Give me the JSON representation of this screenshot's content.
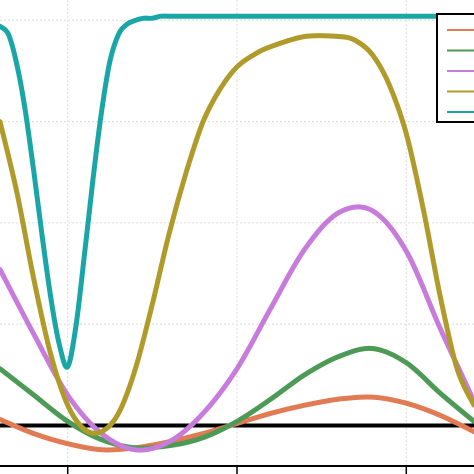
{
  "chart_data": {
    "type": "line",
    "title": "",
    "xlabel": "",
    "ylabel": "",
    "xlim": [
      -0.4,
      2.4
    ],
    "ylim": [
      -0.2,
      2.1
    ],
    "grid": true,
    "legend_position": "top-right",
    "x_ticks": [
      0,
      1,
      2
    ],
    "x_tick_labels": [
      "",
      "",
      ""
    ],
    "baseline": 0,
    "series": [
      {
        "color": "#e07b54",
        "x": [
          -0.4,
          -0.2,
          0.0,
          0.2,
          0.4,
          0.6,
          0.8,
          1.0,
          1.2,
          1.4,
          1.6,
          1.8,
          2.0,
          2.2,
          2.4
        ],
        "y": [
          0.03,
          -0.04,
          -0.09,
          -0.12,
          -0.11,
          -0.08,
          -0.04,
          0.01,
          0.06,
          0.1,
          0.13,
          0.14,
          0.11,
          0.05,
          -0.03
        ]
      },
      {
        "color": "#4c9a55",
        "x": [
          -0.4,
          -0.2,
          0.0,
          0.2,
          0.4,
          0.6,
          0.8,
          1.0,
          1.2,
          1.4,
          1.6,
          1.8,
          2.0,
          2.2,
          2.4
        ],
        "y": [
          0.28,
          0.15,
          0.02,
          -0.07,
          -0.11,
          -0.1,
          -0.06,
          0.02,
          0.13,
          0.25,
          0.34,
          0.38,
          0.31,
          0.16,
          0.02
        ]
      },
      {
        "color": "#c77cdb",
        "x": [
          -0.4,
          -0.2,
          0.0,
          0.2,
          0.4,
          0.6,
          0.8,
          1.0,
          1.2,
          1.4,
          1.6,
          1.8,
          2.0,
          2.2,
          2.4
        ],
        "y": [
          0.77,
          0.45,
          0.15,
          -0.04,
          -0.12,
          -0.08,
          0.06,
          0.28,
          0.58,
          0.87,
          1.05,
          1.06,
          0.86,
          0.48,
          0.12
        ]
      },
      {
        "color": "#b09a2a",
        "x": [
          -0.4,
          -0.3,
          -0.2,
          -0.1,
          0.0,
          0.1,
          0.2,
          0.3,
          0.4,
          0.5,
          0.6,
          0.7,
          0.8,
          0.9,
          1.0,
          1.1,
          1.2,
          1.4,
          1.6,
          1.7,
          1.8,
          1.9,
          2.0,
          2.1,
          2.2,
          2.3,
          2.4
        ],
        "y": [
          1.5,
          1.15,
          0.72,
          0.35,
          0.1,
          -0.02,
          -0.03,
          0.06,
          0.28,
          0.6,
          0.95,
          1.25,
          1.5,
          1.66,
          1.77,
          1.83,
          1.87,
          1.92,
          1.92,
          1.9,
          1.83,
          1.68,
          1.44,
          1.07,
          0.64,
          0.28,
          0.1
        ]
      },
      {
        "color": "#1aa6a6",
        "x": [
          -0.4,
          -0.35,
          -0.3,
          -0.25,
          -0.2,
          -0.15,
          -0.1,
          -0.05,
          0.0,
          0.05,
          0.1,
          0.15,
          0.2,
          0.25,
          0.3,
          0.35,
          0.4,
          0.45,
          0.5,
          0.55,
          0.6,
          0.7,
          0.8,
          1.0,
          1.4,
          1.8,
          2.0,
          2.1,
          2.2,
          2.3,
          2.4
        ],
        "y": [
          1.97,
          1.93,
          1.78,
          1.55,
          1.25,
          0.93,
          0.63,
          0.4,
          0.29,
          0.5,
          0.85,
          1.22,
          1.55,
          1.8,
          1.93,
          1.98,
          2.0,
          2.01,
          2.01,
          2.02,
          2.02,
          2.02,
          2.02,
          2.02,
          2.02,
          2.02,
          2.02,
          2.02,
          2.02,
          2.02,
          2.02
        ]
      }
    ]
  }
}
